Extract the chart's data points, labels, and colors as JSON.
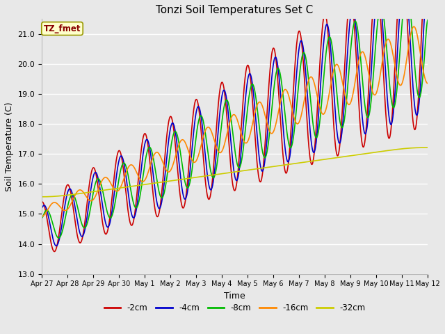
{
  "title": "Tonzi Soil Temperatures Set C",
  "xlabel": "Time",
  "ylabel": "Soil Temperature (C)",
  "ylim": [
    13.0,
    21.5
  ],
  "annotation_text": "TZ_fmet",
  "annotation_color": "#880000",
  "annotation_bg": "#ffffcc",
  "annotation_border": "#999900",
  "bg_color": "#e8e8e8",
  "grid_color": "#ffffff",
  "series": [
    {
      "label": "-2cm",
      "color": "#cc0000",
      "lw": 1.2
    },
    {
      "label": "-4cm",
      "color": "#0000cc",
      "lw": 1.2
    },
    {
      "label": "-8cm",
      "color": "#00bb00",
      "lw": 1.2
    },
    {
      "label": "-16cm",
      "color": "#ff8800",
      "lw": 1.2
    },
    {
      "label": "-32cm",
      "color": "#cccc00",
      "lw": 1.2
    }
  ],
  "xtick_labels": [
    "Apr 27",
    "Apr 28",
    "Apr 29",
    "Apr 30",
    "May 1",
    "May 2",
    "May 3",
    "May 4",
    "May 5",
    "May 6",
    "May 7",
    "May 8",
    "May 9",
    "May 10",
    "May 11",
    "May 12"
  ],
  "ytick_vals": [
    13.0,
    14.0,
    15.0,
    16.0,
    17.0,
    18.0,
    19.0,
    20.0,
    21.0
  ]
}
